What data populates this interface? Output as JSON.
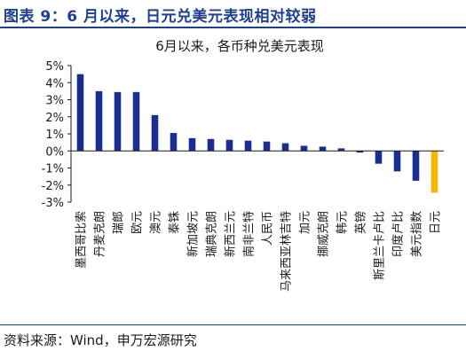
{
  "figure": {
    "heading": "图表 9：6 月以来，日元兑美元表现相对较弱",
    "source": "资料来源：Wind，申万宏源研究"
  },
  "chart_data": {
    "type": "bar",
    "title": "6月以来，各币种兑美元表现",
    "xlabel": "",
    "ylabel": "",
    "ylim": [
      -3,
      5
    ],
    "ytick_step": 1,
    "ytick_format": "percent",
    "grid": false,
    "legend": "none",
    "colors": {
      "default": "#1a2e8f",
      "highlight": "#f5b800"
    },
    "highlight_category": "日元",
    "categories": [
      "墨西哥比索",
      "丹麦克朗",
      "瑞郎",
      "欧元",
      "澳元",
      "泰铢",
      "新加坡元",
      "瑞典克朗",
      "新西兰元",
      "南非兰特",
      "人民币",
      "马来西亚林吉特",
      "加元",
      "挪威克朗",
      "韩元",
      "英镑",
      "斯里兰卡卢比",
      "印度卢比",
      "美元指数",
      "日元"
    ],
    "values": [
      4.5,
      3.5,
      3.45,
      3.45,
      2.1,
      1.05,
      0.75,
      0.7,
      0.65,
      0.6,
      0.55,
      0.45,
      0.3,
      0.25,
      0.15,
      -0.1,
      -0.75,
      -1.2,
      -1.75,
      -2.45
    ]
  }
}
